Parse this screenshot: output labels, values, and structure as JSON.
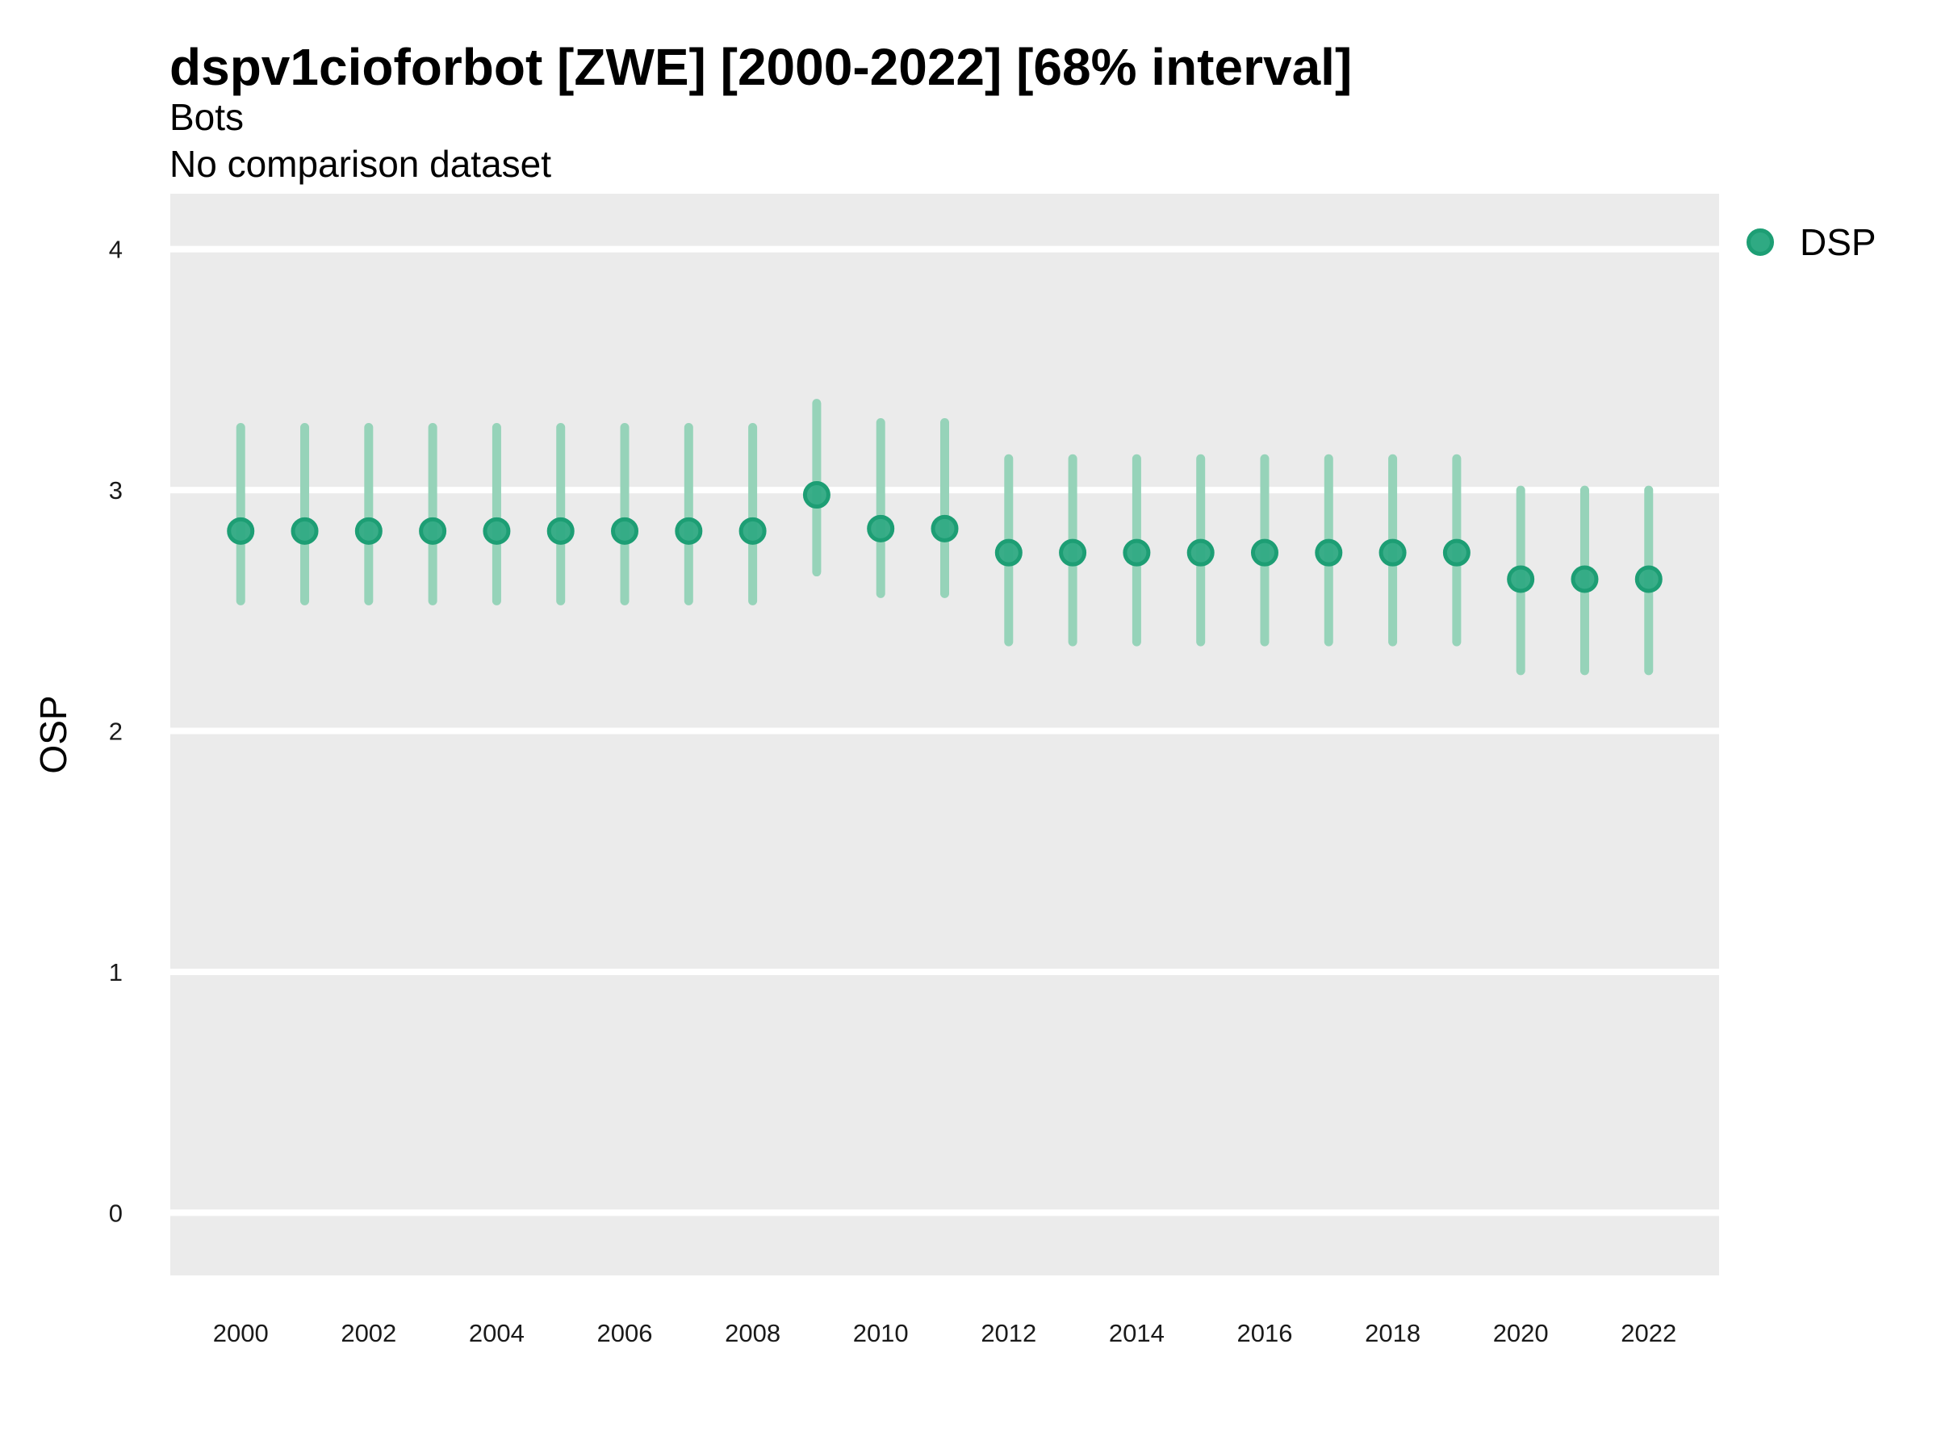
{
  "header": {
    "title": "dspv1cioforbot [ZWE] [2000-2022] [68% interval]",
    "subtitle": "Bots",
    "comparison_note": "No comparison dataset"
  },
  "legend": {
    "label": "DSP"
  },
  "colors": {
    "point_fill": "#2faa83",
    "point_stroke": "#1d9e74",
    "interval_line": "#96d3b9",
    "panel_bg": "#ebebeb",
    "gridline": "#ffffff",
    "title_text": "#000000",
    "tick_text": "#1a1a1a"
  },
  "chart_data": {
    "type": "scatter",
    "subtype": "pointrange-errorbar",
    "title": "dspv1cioforbot [ZWE] [2000-2022] [68% interval]",
    "xlabel": "",
    "ylabel": "OSP",
    "interval_level": "68%",
    "grid": "major-horizontal, white on gray panel, no minor, no tick marks",
    "legend_position": "right-top",
    "x_domain": [
      1998.9,
      2023.1
    ],
    "y_domain": [
      -0.26,
      4.23
    ],
    "x_tick_labels": [
      2000,
      2002,
      2004,
      2006,
      2008,
      2010,
      2012,
      2014,
      2016,
      2018,
      2020,
      2022
    ],
    "y_tick_labels": [
      0,
      1,
      2,
      3,
      4
    ],
    "series": [
      {
        "name": "DSP",
        "points": [
          {
            "year": 2000,
            "estimate": 2.83,
            "lower": 2.54,
            "upper": 3.26
          },
          {
            "year": 2001,
            "estimate": 2.83,
            "lower": 2.54,
            "upper": 3.26
          },
          {
            "year": 2002,
            "estimate": 2.83,
            "lower": 2.54,
            "upper": 3.26
          },
          {
            "year": 2003,
            "estimate": 2.83,
            "lower": 2.54,
            "upper": 3.26
          },
          {
            "year": 2004,
            "estimate": 2.83,
            "lower": 2.54,
            "upper": 3.26
          },
          {
            "year": 2005,
            "estimate": 2.83,
            "lower": 2.54,
            "upper": 3.26
          },
          {
            "year": 2006,
            "estimate": 2.83,
            "lower": 2.54,
            "upper": 3.26
          },
          {
            "year": 2007,
            "estimate": 2.83,
            "lower": 2.54,
            "upper": 3.26
          },
          {
            "year": 2008,
            "estimate": 2.83,
            "lower": 2.54,
            "upper": 3.26
          },
          {
            "year": 2009,
            "estimate": 2.98,
            "lower": 2.66,
            "upper": 3.36
          },
          {
            "year": 2010,
            "estimate": 2.84,
            "lower": 2.57,
            "upper": 3.28
          },
          {
            "year": 2011,
            "estimate": 2.84,
            "lower": 2.57,
            "upper": 3.28
          },
          {
            "year": 2012,
            "estimate": 2.74,
            "lower": 2.37,
            "upper": 3.13
          },
          {
            "year": 2013,
            "estimate": 2.74,
            "lower": 2.37,
            "upper": 3.13
          },
          {
            "year": 2014,
            "estimate": 2.74,
            "lower": 2.37,
            "upper": 3.13
          },
          {
            "year": 2015,
            "estimate": 2.74,
            "lower": 2.37,
            "upper": 3.13
          },
          {
            "year": 2016,
            "estimate": 2.74,
            "lower": 2.37,
            "upper": 3.13
          },
          {
            "year": 2017,
            "estimate": 2.74,
            "lower": 2.37,
            "upper": 3.13
          },
          {
            "year": 2018,
            "estimate": 2.74,
            "lower": 2.37,
            "upper": 3.13
          },
          {
            "year": 2019,
            "estimate": 2.74,
            "lower": 2.37,
            "upper": 3.13
          },
          {
            "year": 2020,
            "estimate": 2.63,
            "lower": 2.25,
            "upper": 3.0
          },
          {
            "year": 2021,
            "estimate": 2.63,
            "lower": 2.25,
            "upper": 3.0
          },
          {
            "year": 2022,
            "estimate": 2.63,
            "lower": 2.25,
            "upper": 3.0
          }
        ]
      }
    ]
  }
}
